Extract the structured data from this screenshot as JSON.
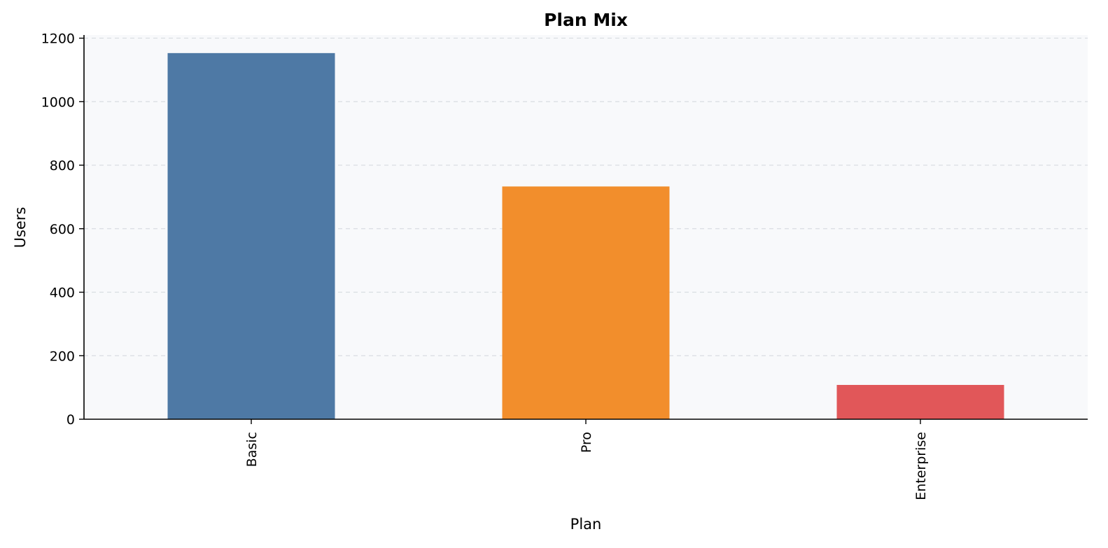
{
  "chart_data": {
    "type": "bar",
    "title": "Plan Mix",
    "xlabel": "Plan",
    "ylabel": "Users",
    "categories": [
      "Basic",
      "Pro",
      "Enterprise"
    ],
    "values": [
      1153,
      733,
      108
    ],
    "ylim": [
      0,
      1210
    ],
    "yticks": [
      0,
      200,
      400,
      600,
      800,
      1000,
      1200
    ],
    "colors": [
      "#4e79a5",
      "#f28e2c",
      "#e15759"
    ],
    "grid": "y",
    "plot_background": "#f8f9fb",
    "legend": "none"
  }
}
